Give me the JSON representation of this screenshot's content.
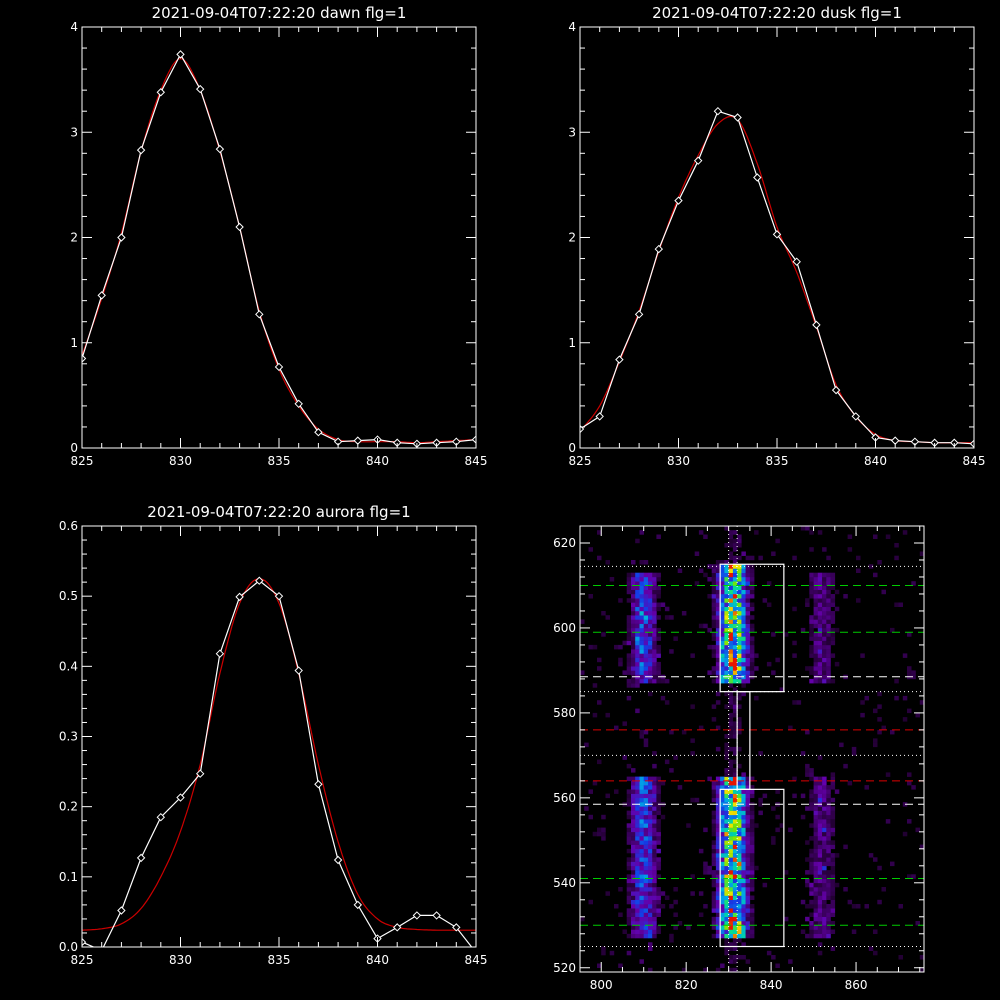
{
  "chart_data": [
    {
      "type": "line",
      "title": "2021-09-04T07:22:20 dawn flg=1",
      "xlim": [
        825,
        845
      ],
      "ylim": [
        0,
        4
      ],
      "xticks": [
        "825",
        "830",
        "835",
        "840",
        "845"
      ],
      "yticks": [
        "0",
        "1",
        "2",
        "3",
        "4"
      ],
      "series": [
        {
          "color": "#ffffff",
          "markers": "diamond",
          "x": [
            825,
            826,
            827,
            828,
            829,
            830,
            831,
            832,
            833,
            834,
            835,
            836,
            837,
            838,
            839,
            840,
            841,
            842,
            843,
            844,
            845
          ],
          "y": [
            0.85,
            1.45,
            2.0,
            2.83,
            3.38,
            3.74,
            3.41,
            2.84,
            2.1,
            1.27,
            0.77,
            0.42,
            0.15,
            0.06,
            0.07,
            0.08,
            0.05,
            0.04,
            0.05,
            0.06,
            0.08
          ]
        },
        {
          "color": "#cc0000",
          "x": [
            825,
            826,
            827,
            828,
            829,
            830,
            831,
            832,
            833,
            834,
            835,
            836,
            837,
            838,
            839,
            840,
            841,
            842,
            843,
            844,
            845
          ],
          "y": [
            0.88,
            1.42,
            2.04,
            2.82,
            3.4,
            3.7,
            3.4,
            2.82,
            2.1,
            1.3,
            0.75,
            0.4,
            0.18,
            0.08,
            0.06,
            0.06,
            0.06,
            0.05,
            0.06,
            0.07,
            0.08
          ]
        }
      ]
    },
    {
      "type": "line",
      "title": "2021-09-04T07:22:20 dusk flg=1",
      "xlim": [
        825,
        845
      ],
      "ylim": [
        0,
        4
      ],
      "xticks": [
        "825",
        "830",
        "835",
        "840",
        "845"
      ],
      "yticks": [
        "0",
        "1",
        "2",
        "3",
        "4"
      ],
      "series": [
        {
          "color": "#ffffff",
          "markers": "diamond",
          "x": [
            825,
            826,
            827,
            828,
            829,
            830,
            831,
            832,
            833,
            834,
            835,
            836,
            837,
            838,
            839,
            840,
            841,
            842,
            843,
            844,
            845
          ],
          "y": [
            0.18,
            0.3,
            0.84,
            1.27,
            1.89,
            2.35,
            2.73,
            3.2,
            3.14,
            2.57,
            2.03,
            1.77,
            1.17,
            0.55,
            0.3,
            0.1,
            0.07,
            0.06,
            0.05,
            0.05,
            0.04
          ]
        },
        {
          "color": "#cc0000",
          "x": [
            825,
            826,
            827,
            828,
            829,
            830,
            831,
            832,
            833,
            834,
            835,
            836,
            837,
            838,
            839,
            840,
            841,
            842,
            843,
            844,
            845
          ],
          "y": [
            0.16,
            0.4,
            0.82,
            1.3,
            1.87,
            2.38,
            2.78,
            3.08,
            3.12,
            2.7,
            2.1,
            1.67,
            1.15,
            0.6,
            0.3,
            0.13,
            0.07,
            0.06,
            0.05,
            0.05,
            0.05
          ]
        }
      ]
    },
    {
      "type": "line",
      "title": "2021-09-04T07:22:20 aurora flg=1",
      "xlim": [
        825,
        845
      ],
      "ylim": [
        0,
        0.6
      ],
      "xticks": [
        "825",
        "830",
        "835",
        "840",
        "845"
      ],
      "yticks": [
        "0.0",
        "0.1",
        "0.2",
        "0.3",
        "0.4",
        "0.5",
        "0.6"
      ],
      "series": [
        {
          "color": "#ffffff",
          "markers": "diamond",
          "x": [
            825,
            826,
            827,
            828,
            829,
            830,
            831,
            832,
            833,
            834,
            835,
            836,
            837,
            838,
            839,
            840,
            841,
            842,
            843,
            844,
            845
          ],
          "y": [
            0.007,
            -0.005,
            0.052,
            0.127,
            0.185,
            0.213,
            0.247,
            0.418,
            0.499,
            0.522,
            0.5,
            0.394,
            0.232,
            0.124,
            0.06,
            0.012,
            0.028,
            0.045,
            0.045,
            0.028,
            -0.008
          ]
        },
        {
          "color": "#cc0000",
          "x": [
            825,
            826,
            827,
            828,
            829,
            830,
            831,
            832,
            833,
            834,
            835,
            836,
            837,
            838,
            839,
            840,
            841,
            842,
            843,
            844,
            845
          ],
          "y": [
            0.024,
            0.026,
            0.033,
            0.055,
            0.1,
            0.165,
            0.26,
            0.39,
            0.49,
            0.525,
            0.49,
            0.39,
            0.26,
            0.15,
            0.075,
            0.04,
            0.028,
            0.025,
            0.024,
            0.024,
            0.024
          ]
        }
      ]
    },
    {
      "type": "heatmap",
      "title": "",
      "xlim": [
        795,
        876
      ],
      "ylim": [
        519,
        624
      ],
      "xticks": [
        "800",
        "820",
        "840",
        "860"
      ],
      "yticks": [
        "520",
        "540",
        "560",
        "580",
        "600",
        "620"
      ],
      "bands": [
        {
          "center": 810,
          "width": 3.2,
          "ranges": [
            [
              527,
              564
            ],
            [
              587,
              612
            ]
          ],
          "peak": 0.5
        },
        {
          "center": 831,
          "width": 3.4,
          "ranges": [
            [
              527,
              564
            ],
            [
              587,
              614
            ]
          ],
          "peak": 0.95
        },
        {
          "center": 852,
          "width": 3.4,
          "ranges": [
            [
              527,
              564
            ],
            [
              587,
              612
            ]
          ],
          "peak": 0.25
        }
      ],
      "vlines": [
        {
          "x": 830,
          "style": "dotted",
          "color": "#ffffff"
        },
        {
          "x": 832,
          "style": "dotted",
          "color": "#ffffff"
        }
      ],
      "hlines": [
        {
          "y": 614.5,
          "style": "dotted",
          "color": "#ffffff"
        },
        {
          "y": 610,
          "style": "dashed",
          "color": "#00cc00"
        },
        {
          "y": 599,
          "style": "dashed",
          "color": "#00cc00"
        },
        {
          "y": 588.5,
          "style": "dashed",
          "color": "#ffffff"
        },
        {
          "y": 585,
          "style": "dotted",
          "color": "#ffffff"
        },
        {
          "y": 576,
          "style": "dashed",
          "color": "#dd0000"
        },
        {
          "y": 570,
          "style": "dotted",
          "color": "#ffffff"
        },
        {
          "y": 564,
          "style": "dashed",
          "color": "#dd0000"
        },
        {
          "y": 558.5,
          "style": "dashed",
          "color": "#ffffff"
        },
        {
          "y": 541,
          "style": "dashed",
          "color": "#00cc00"
        },
        {
          "y": 530,
          "style": "dashed",
          "color": "#00cc00"
        },
        {
          "y": 525,
          "style": "dotted",
          "color": "#ffffff"
        }
      ],
      "boxes": [
        {
          "x0": 828,
          "x1": 843,
          "y0": 585,
          "y1": 615
        },
        {
          "x0": 828,
          "x1": 843,
          "y0": 525,
          "y1": 562
        },
        {
          "x0": 832,
          "x1": 835,
          "y0": 562,
          "y1": 585
        }
      ]
    }
  ]
}
